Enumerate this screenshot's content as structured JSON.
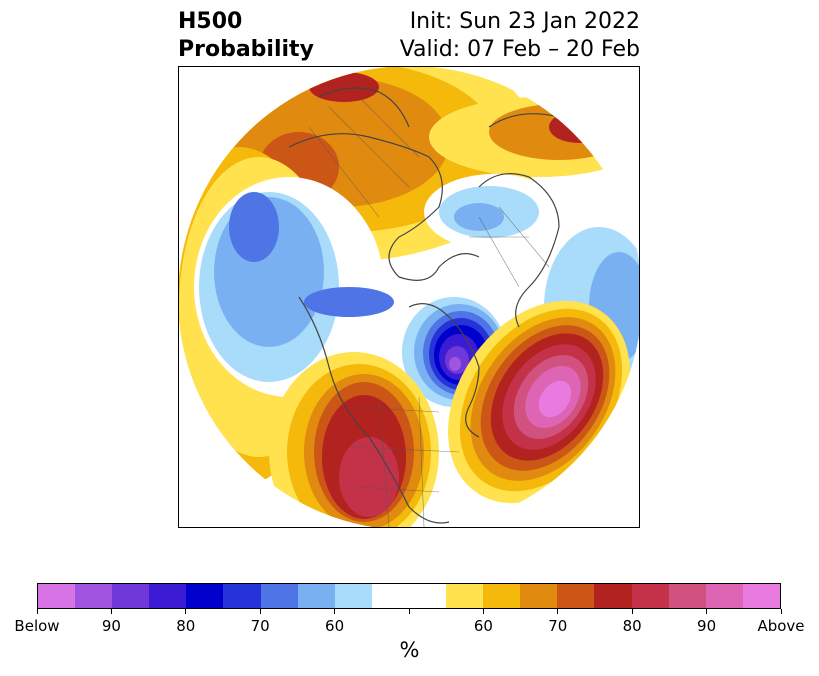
{
  "header": {
    "title_line1": "H500",
    "title_line2": "Probability",
    "init_line": "Init: Sun 23 Jan 2022",
    "valid_line": "Valid: 07 Feb – 20 Feb"
  },
  "colorbar": {
    "colors": [
      "#d873e6",
      "#a054e0",
      "#7038d8",
      "#3b1cd4",
      "#0000cc",
      "#2633d9",
      "#4e74e6",
      "#79b0f2",
      "#a9dcfb",
      "#ffffff",
      "#ffffff",
      "#ffe24d",
      "#f4b90a",
      "#e08a10",
      "#cc5615",
      "#b2221f",
      "#c4324a",
      "#d2527f",
      "#de64b4",
      "#e87ae0"
    ],
    "tick_labels": [
      "Below",
      "90",
      "80",
      "70",
      "60",
      "",
      "60",
      "70",
      "80",
      "90",
      "Above"
    ],
    "unit_label": "%"
  },
  "map": {
    "projection": "north-polar-stereographic",
    "center_feature": "North America / North Atlantic",
    "anomalies": [
      {
        "region": "Central Canada / Hudson Bay",
        "category": "Below",
        "peak_probability": 90
      },
      {
        "region": "Northeast Pacific / Gulf of Alaska",
        "category": "Below",
        "peak_probability": 70
      },
      {
        "region": "Western North Atlantic",
        "category": "Above",
        "peak_probability": 90
      },
      {
        "region": "Western United States",
        "category": "Above",
        "peak_probability": 80
      },
      {
        "region": "Northern Siberia",
        "category": "Above",
        "peak_probability": 75
      },
      {
        "region": "Northwest Russia / Barents Sea",
        "category": "Above",
        "peak_probability": 80
      }
    ]
  }
}
